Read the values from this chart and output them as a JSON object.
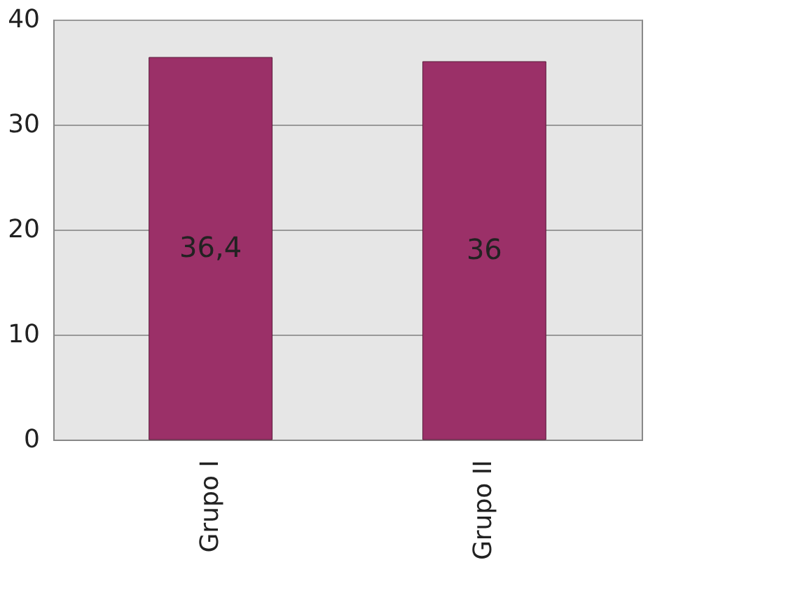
{
  "chart_data": {
    "type": "bar",
    "categories": [
      "Grupo I",
      "Grupo II"
    ],
    "values": [
      36.4,
      36
    ],
    "value_labels": [
      "36,4",
      "36"
    ],
    "color": "#9b3068",
    "ylim": [
      0,
      40
    ],
    "yticks": [
      0,
      10,
      20,
      30,
      40
    ],
    "grid": "y"
  }
}
